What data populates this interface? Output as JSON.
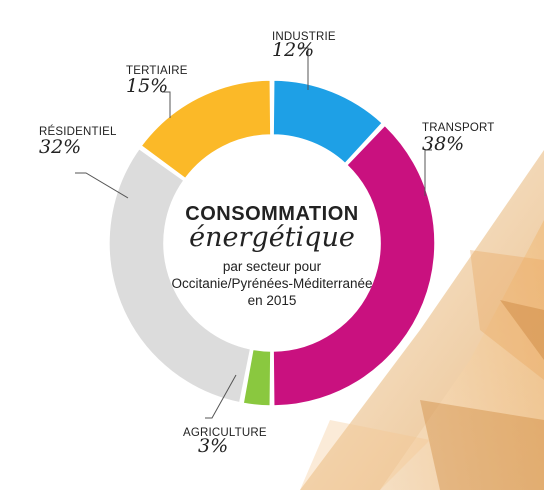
{
  "chart_data": {
    "type": "pie",
    "title": "CONSOMMATION",
    "subtitle": "énergétique",
    "description": [
      "par secteur pour",
      "Occitanie/Pyrénées-Méditerranée",
      "en 2015"
    ],
    "slices": [
      {
        "label": "INDUSTRIE",
        "percent_label": "12%",
        "value": 12,
        "color": "#1ea0e6"
      },
      {
        "label": "TRANSPORT",
        "percent_label": "38%",
        "value": 38,
        "color": "#c9117f"
      },
      {
        "label": "AGRICULTURE",
        "percent_label": "3%",
        "value": 3,
        "color": "#8ac83f"
      },
      {
        "label": "RÉSIDENTIEL",
        "percent_label": "32%",
        "value": 32,
        "color": "#dcdcdc"
      },
      {
        "label": "TERTIAIRE",
        "percent_label": "15%",
        "value": 15,
        "color": "#fbb928"
      }
    ]
  }
}
